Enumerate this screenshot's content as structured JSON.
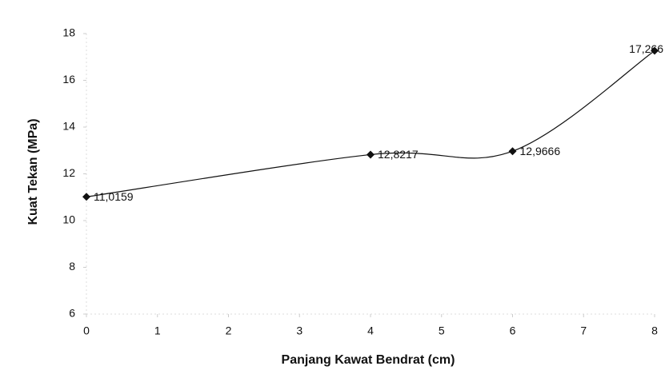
{
  "chart_data": {
    "type": "line",
    "x_label": "Panjang Kawat Bendrat (cm)",
    "y_label": "Kuat Tekan (MPa)",
    "x": [
      0,
      4,
      6,
      8
    ],
    "series": [
      {
        "name": "Kuat Tekan",
        "color": "#111111",
        "values": [
          11.0159,
          12.8217,
          12.9666,
          17.266
        ],
        "value_labels": [
          "11,0159",
          "12,8217",
          "12,9666",
          "17,266"
        ]
      }
    ],
    "xlim": [
      0,
      8
    ],
    "xticks": [
      0,
      1,
      2,
      3,
      4,
      5,
      6,
      7,
      8
    ],
    "ylim": [
      6,
      18
    ],
    "yticks": [
      6,
      8,
      10,
      12,
      14,
      16,
      18
    ],
    "grid": false,
    "smooth": true
  }
}
